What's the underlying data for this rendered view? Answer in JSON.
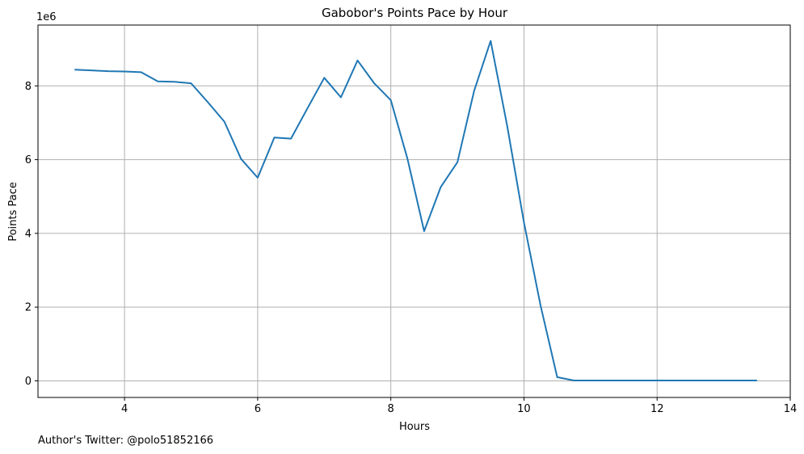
{
  "footer": {
    "credit": "Author's Twitter: @polo51852166"
  },
  "colors": {
    "line": "#1f77b4",
    "grid": "#b0b0b0",
    "axis": "#000000"
  },
  "chart_data": {
    "type": "line",
    "title": "Gabobor's Points Pace by Hour",
    "xlabel": "Hours",
    "ylabel": "Points Pace",
    "y_scale_label": "1e6",
    "xlim": [
      2.7,
      14.0
    ],
    "ylim": [
      -0.45,
      9.65
    ],
    "x_ticks": [
      4,
      6,
      8,
      10,
      12,
      14
    ],
    "x_tick_labels": [
      "4",
      "6",
      "8",
      "10",
      "12",
      "14"
    ],
    "y_ticks": [
      0,
      2,
      4,
      6,
      8
    ],
    "y_tick_labels": [
      "0",
      "2",
      "4",
      "6",
      "8"
    ],
    "grid": true,
    "series": [
      {
        "x": [
          3.25,
          3.5,
          3.75,
          4.0,
          4.25,
          4.5,
          4.75,
          5.0,
          5.25,
          5.5,
          5.75,
          6.0,
          6.25,
          6.5,
          6.75,
          7.0,
          7.25,
          7.5,
          7.75,
          8.0,
          8.25,
          8.5,
          8.75,
          9.0,
          9.25,
          9.5,
          9.75,
          10.0,
          10.25,
          10.5,
          10.75,
          11.0,
          11.25,
          11.5,
          11.75,
          12.0,
          12.25,
          12.5,
          12.75,
          13.0,
          13.25,
          13.5
        ],
        "y": [
          8.44,
          8.42,
          8.4,
          8.39,
          8.37,
          8.12,
          8.11,
          8.07,
          7.56,
          7.03,
          6.02,
          5.51,
          6.6,
          6.57,
          7.4,
          8.22,
          7.69,
          8.69,
          8.07,
          7.61,
          6.02,
          4.06,
          5.26,
          5.93,
          7.86,
          9.22,
          6.9,
          4.3,
          2.04,
          0.1,
          0.01,
          0.01,
          0.01,
          0.01,
          0.01,
          0.01,
          0.01,
          0.01,
          0.01,
          0.01,
          0.01,
          0.01
        ]
      }
    ]
  }
}
